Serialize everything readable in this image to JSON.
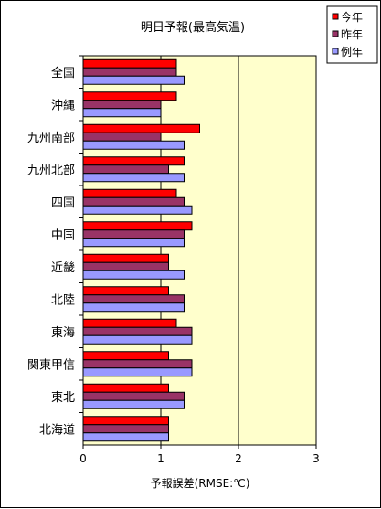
{
  "chart_data": {
    "type": "bar",
    "orientation": "horizontal",
    "title": "明日予報(最高気温)",
    "xlabel": "予報誤差(RMSE:℃)",
    "ylabel": "",
    "xlim": [
      0,
      3
    ],
    "xticks": [
      "0",
      "1",
      "2",
      "3"
    ],
    "grid": "x",
    "legend_position": "top-right",
    "plot_background": "#FFFFCC",
    "categories": [
      "全国",
      "沖縄",
      "九州南部",
      "九州北部",
      "四国",
      "中国",
      "近畿",
      "北陸",
      "東海",
      "関東甲信",
      "東北",
      "北海道"
    ],
    "series": [
      {
        "name": "今年",
        "color": "#FF0000",
        "values": [
          1.2,
          1.2,
          1.5,
          1.3,
          1.2,
          1.4,
          1.1,
          1.1,
          1.2,
          1.1,
          1.1,
          1.1
        ]
      },
      {
        "name": "昨年",
        "color": "#993366",
        "values": [
          1.2,
          1.0,
          1.0,
          1.1,
          1.3,
          1.3,
          1.1,
          1.3,
          1.4,
          1.4,
          1.3,
          1.1
        ]
      },
      {
        "name": "例年",
        "color": "#9999FF",
        "values": [
          1.3,
          1.0,
          1.3,
          1.3,
          1.4,
          1.3,
          1.3,
          1.3,
          1.4,
          1.4,
          1.3,
          1.1
        ]
      }
    ]
  }
}
